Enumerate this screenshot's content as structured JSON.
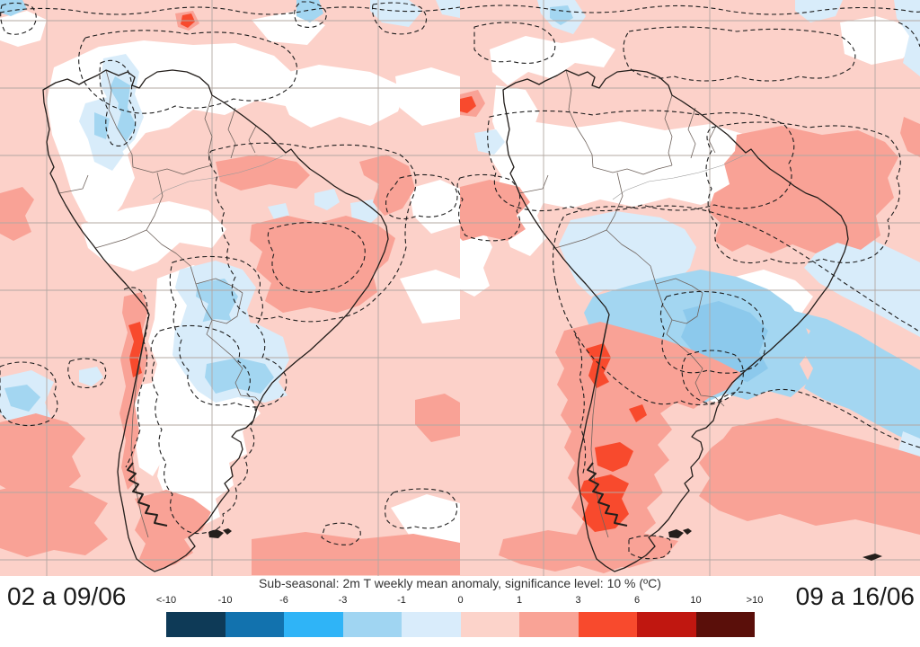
{
  "figure": {
    "title": "Sub-seasonal: 2m T weekly mean anomaly, significance level: 10 % (ºC)",
    "left_panel_label": "02 a 09/06",
    "right_panel_label": "09 a 16/06"
  },
  "colorbar": {
    "tick_labels": [
      "<-10",
      "-10",
      "-6",
      "-3",
      "-1",
      "0",
      "1",
      "3",
      "6",
      "10",
      ">10"
    ],
    "segment_colors": [
      "#0e3a57",
      "#1272ae",
      "#2fb4f7",
      "#a0d5f2",
      "#d9ecfb",
      "#fcd3ca",
      "#f9a396",
      "#f84a2d",
      "#c01710",
      "#5a0f0a"
    ],
    "units": "ºC"
  },
  "chart_data": {
    "type": "heatmap",
    "title": "Sub-seasonal: 2m T weekly mean anomaly, significance level: 10 % (ºC)",
    "panels": [
      {
        "label": "02 a 09/06"
      },
      {
        "label": "09 a 16/06"
      }
    ],
    "legend": {
      "tick_labels": [
        "<-10",
        "-10",
        "-6",
        "-3",
        "-1",
        "0",
        "1",
        "3",
        "6",
        "10",
        ">10"
      ],
      "colors": [
        "#0e3a57",
        "#1272ae",
        "#2fb4f7",
        "#a0d5f2",
        "#d9ecfb",
        "#fcd3ca",
        "#f9a396",
        "#f84a2d",
        "#c01710",
        "#5a0f0a"
      ],
      "units": "ºC",
      "significance_level": "10 %"
    }
  },
  "map_colors": {
    "ocean_background": "#fcd1c9",
    "anomaly_m3_m1": "#a3d6f1",
    "anomaly_m1_0": "#d8ecfa",
    "anomaly_deep": "#8cc9ec",
    "anomaly_1_3": "#f9a296",
    "anomaly_3_6": "#f84a2d",
    "anomaly_6_10": "#c01710",
    "graticule": "#b3a8a2",
    "coastline": "#221d1a",
    "borders": "#6f635d",
    "significance_contour": "#1e1e1e"
  }
}
